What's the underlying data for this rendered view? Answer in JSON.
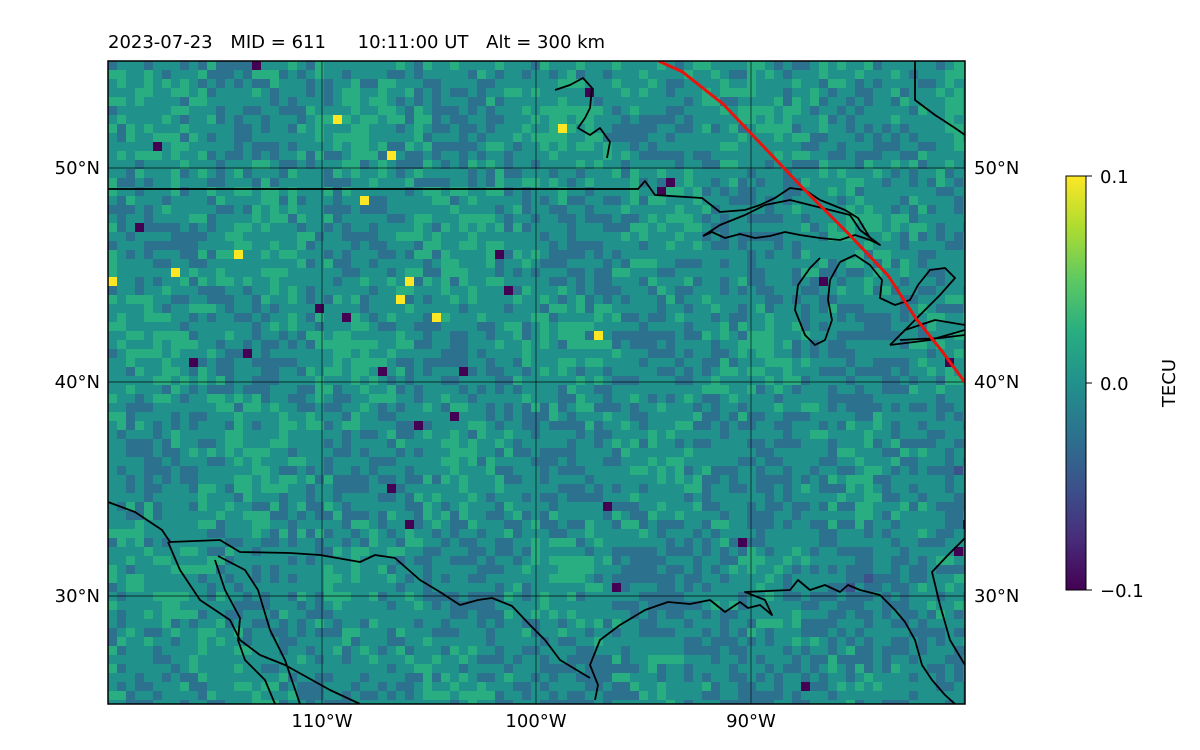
{
  "title": {
    "date": "2023-07-23",
    "mid": "MID = 611",
    "time": "10:11:00  UT",
    "alt": "Alt = 300 km"
  },
  "map": {
    "extent": {
      "lon": [
        -120,
        -80
      ],
      "lat": [
        25,
        55
      ]
    },
    "lat_ticks": [
      {
        "value": 50,
        "label": "50°N"
      },
      {
        "value": 40,
        "label": "40°N"
      },
      {
        "value": 30,
        "label": "30°N"
      }
    ],
    "lon_ticks": [
      {
        "value": -110,
        "label": "110°W"
      },
      {
        "value": -100,
        "label": "100°W"
      },
      {
        "value": -90,
        "label": "90°W"
      }
    ],
    "colormap": "viridis",
    "track_color": "#e8150e",
    "track_latlon": [
      [
        55,
        -94.3
      ],
      [
        54.5,
        -93.2
      ],
      [
        53,
        -91.3
      ],
      [
        51,
        -89.4
      ],
      [
        49,
        -87.5
      ],
      [
        47,
        -85.5
      ],
      [
        45,
        -83.6
      ],
      [
        43,
        -82.3
      ],
      [
        41.5,
        -81.1
      ],
      [
        40,
        -80
      ]
    ]
  },
  "colorbar": {
    "label": "TECU",
    "ticks": [
      {
        "value": 0.1,
        "label": "0.1"
      },
      {
        "value": 0.0,
        "label": "0.0"
      },
      {
        "value": -0.1,
        "label": "−0.1"
      }
    ]
  }
}
